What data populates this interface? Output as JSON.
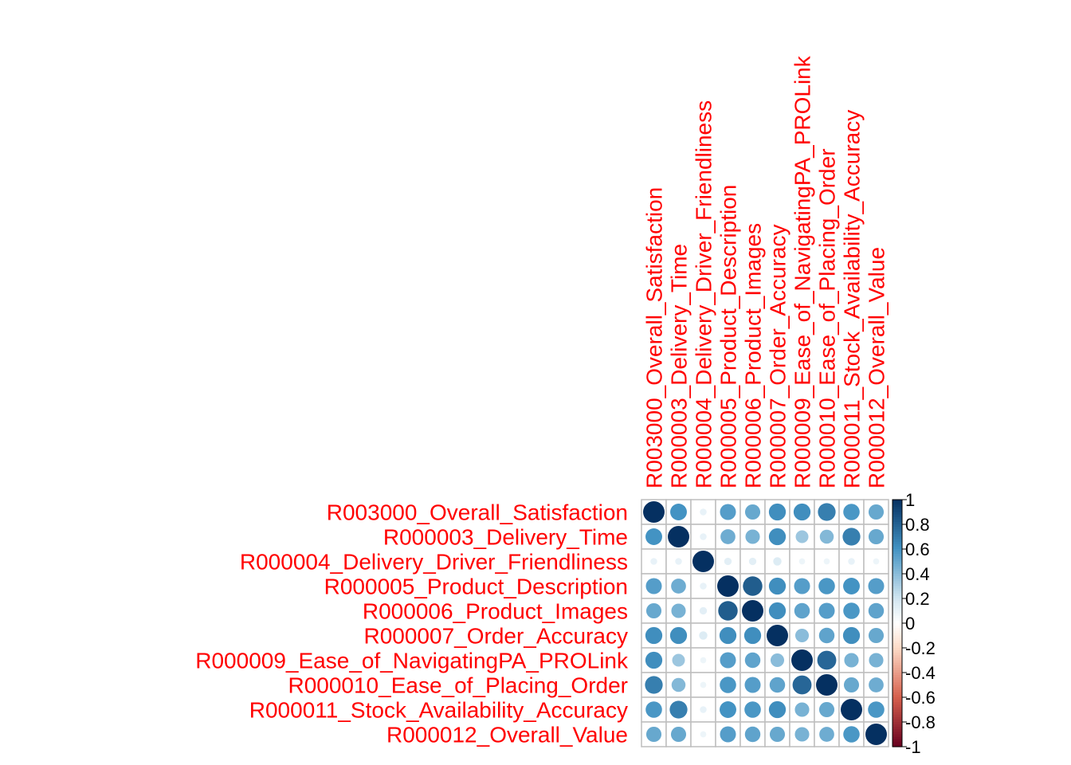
{
  "chart_data": {
    "type": "heatmap",
    "variables": [
      "R003000_Overall_Satisfaction",
      "R000003_Delivery_Time",
      "R000004_Delivery_Driver_Friendliness",
      "R000005_Product_Description",
      "R000006_Product_Images",
      "R000007_Order_Accuracy",
      "R000009_Ease_of_NavigatingPA_PROLink",
      "R000010_Ease_of_Placing_Order",
      "R000011_Stock_Availability_Accuracy",
      "R000012_Overall_Value"
    ],
    "matrix": [
      [
        1.0,
        0.6,
        0.1,
        0.55,
        0.5,
        0.62,
        0.62,
        0.68,
        0.58,
        0.5
      ],
      [
        0.6,
        1.0,
        0.1,
        0.48,
        0.45,
        0.62,
        0.35,
        0.42,
        0.68,
        0.5
      ],
      [
        0.1,
        0.1,
        1.0,
        0.12,
        0.12,
        0.15,
        0.08,
        0.08,
        0.1,
        0.08
      ],
      [
        0.55,
        0.48,
        0.1,
        1.0,
        0.82,
        0.62,
        0.55,
        0.58,
        0.6,
        0.55
      ],
      [
        0.5,
        0.45,
        0.12,
        0.82,
        1.0,
        0.62,
        0.52,
        0.55,
        0.58,
        0.52
      ],
      [
        0.62,
        0.62,
        0.15,
        0.62,
        0.62,
        1.0,
        0.4,
        0.52,
        0.62,
        0.5
      ],
      [
        0.62,
        0.35,
        0.08,
        0.55,
        0.52,
        0.4,
        1.0,
        0.78,
        0.45,
        0.45
      ],
      [
        0.68,
        0.42,
        0.08,
        0.58,
        0.55,
        0.52,
        0.78,
        1.0,
        0.5,
        0.48
      ],
      [
        0.58,
        0.68,
        0.1,
        0.6,
        0.58,
        0.62,
        0.45,
        0.5,
        1.0,
        0.58
      ],
      [
        0.5,
        0.5,
        0.08,
        0.55,
        0.52,
        0.5,
        0.45,
        0.48,
        0.58,
        1.0
      ]
    ],
    "color_scale": {
      "range": [
        -1,
        1
      ],
      "ticks": [
        "1",
        "0.8",
        "0.6",
        "0.4",
        "0.2",
        "0",
        "-0.2",
        "-0.4",
        "-0.6",
        "-0.8",
        "-1"
      ],
      "colors": {
        "neg_strong": "#67001f",
        "neg_mid": "#d6604d",
        "neg_light": "#fddbc7",
        "zero": "#ffffff",
        "pos_light": "#d1e5f0",
        "pos_mid": "#4393c3",
        "pos_strong": "#053061"
      }
    },
    "glyph": "circle",
    "grid": true,
    "label_color": "#ff0000",
    "legend_placement": "right"
  }
}
